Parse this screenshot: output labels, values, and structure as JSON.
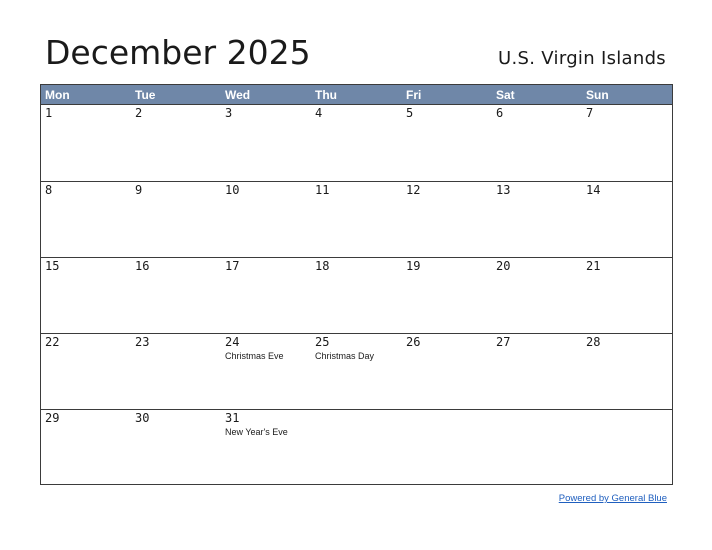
{
  "title": "December 2025",
  "region": "U.S. Virgin Islands",
  "weekdays": [
    "Mon",
    "Tue",
    "Wed",
    "Thu",
    "Fri",
    "Sat",
    "Sun"
  ],
  "weeks": [
    [
      {
        "day": "1"
      },
      {
        "day": "2"
      },
      {
        "day": "3"
      },
      {
        "day": "4"
      },
      {
        "day": "5"
      },
      {
        "day": "6"
      },
      {
        "day": "7"
      }
    ],
    [
      {
        "day": "8"
      },
      {
        "day": "9"
      },
      {
        "day": "10"
      },
      {
        "day": "11"
      },
      {
        "day": "12"
      },
      {
        "day": "13"
      },
      {
        "day": "14"
      }
    ],
    [
      {
        "day": "15"
      },
      {
        "day": "16"
      },
      {
        "day": "17"
      },
      {
        "day": "18"
      },
      {
        "day": "19"
      },
      {
        "day": "20"
      },
      {
        "day": "21"
      }
    ],
    [
      {
        "day": "22"
      },
      {
        "day": "23"
      },
      {
        "day": "24",
        "holiday": "Christmas Eve"
      },
      {
        "day": "25",
        "holiday": "Christmas Day"
      },
      {
        "day": "26"
      },
      {
        "day": "27"
      },
      {
        "day": "28"
      }
    ],
    [
      {
        "day": "29"
      },
      {
        "day": "30"
      },
      {
        "day": "31",
        "holiday": "New Year's Eve"
      },
      {
        "day": ""
      },
      {
        "day": ""
      },
      {
        "day": ""
      },
      {
        "day": ""
      }
    ]
  ],
  "footer": {
    "credit": "Powered by General Blue"
  },
  "colors": {
    "header_bg": "#6f87a8",
    "header_text": "#ffffff",
    "link": "#1f5fbf",
    "grid_line": "#3b3b3b"
  }
}
